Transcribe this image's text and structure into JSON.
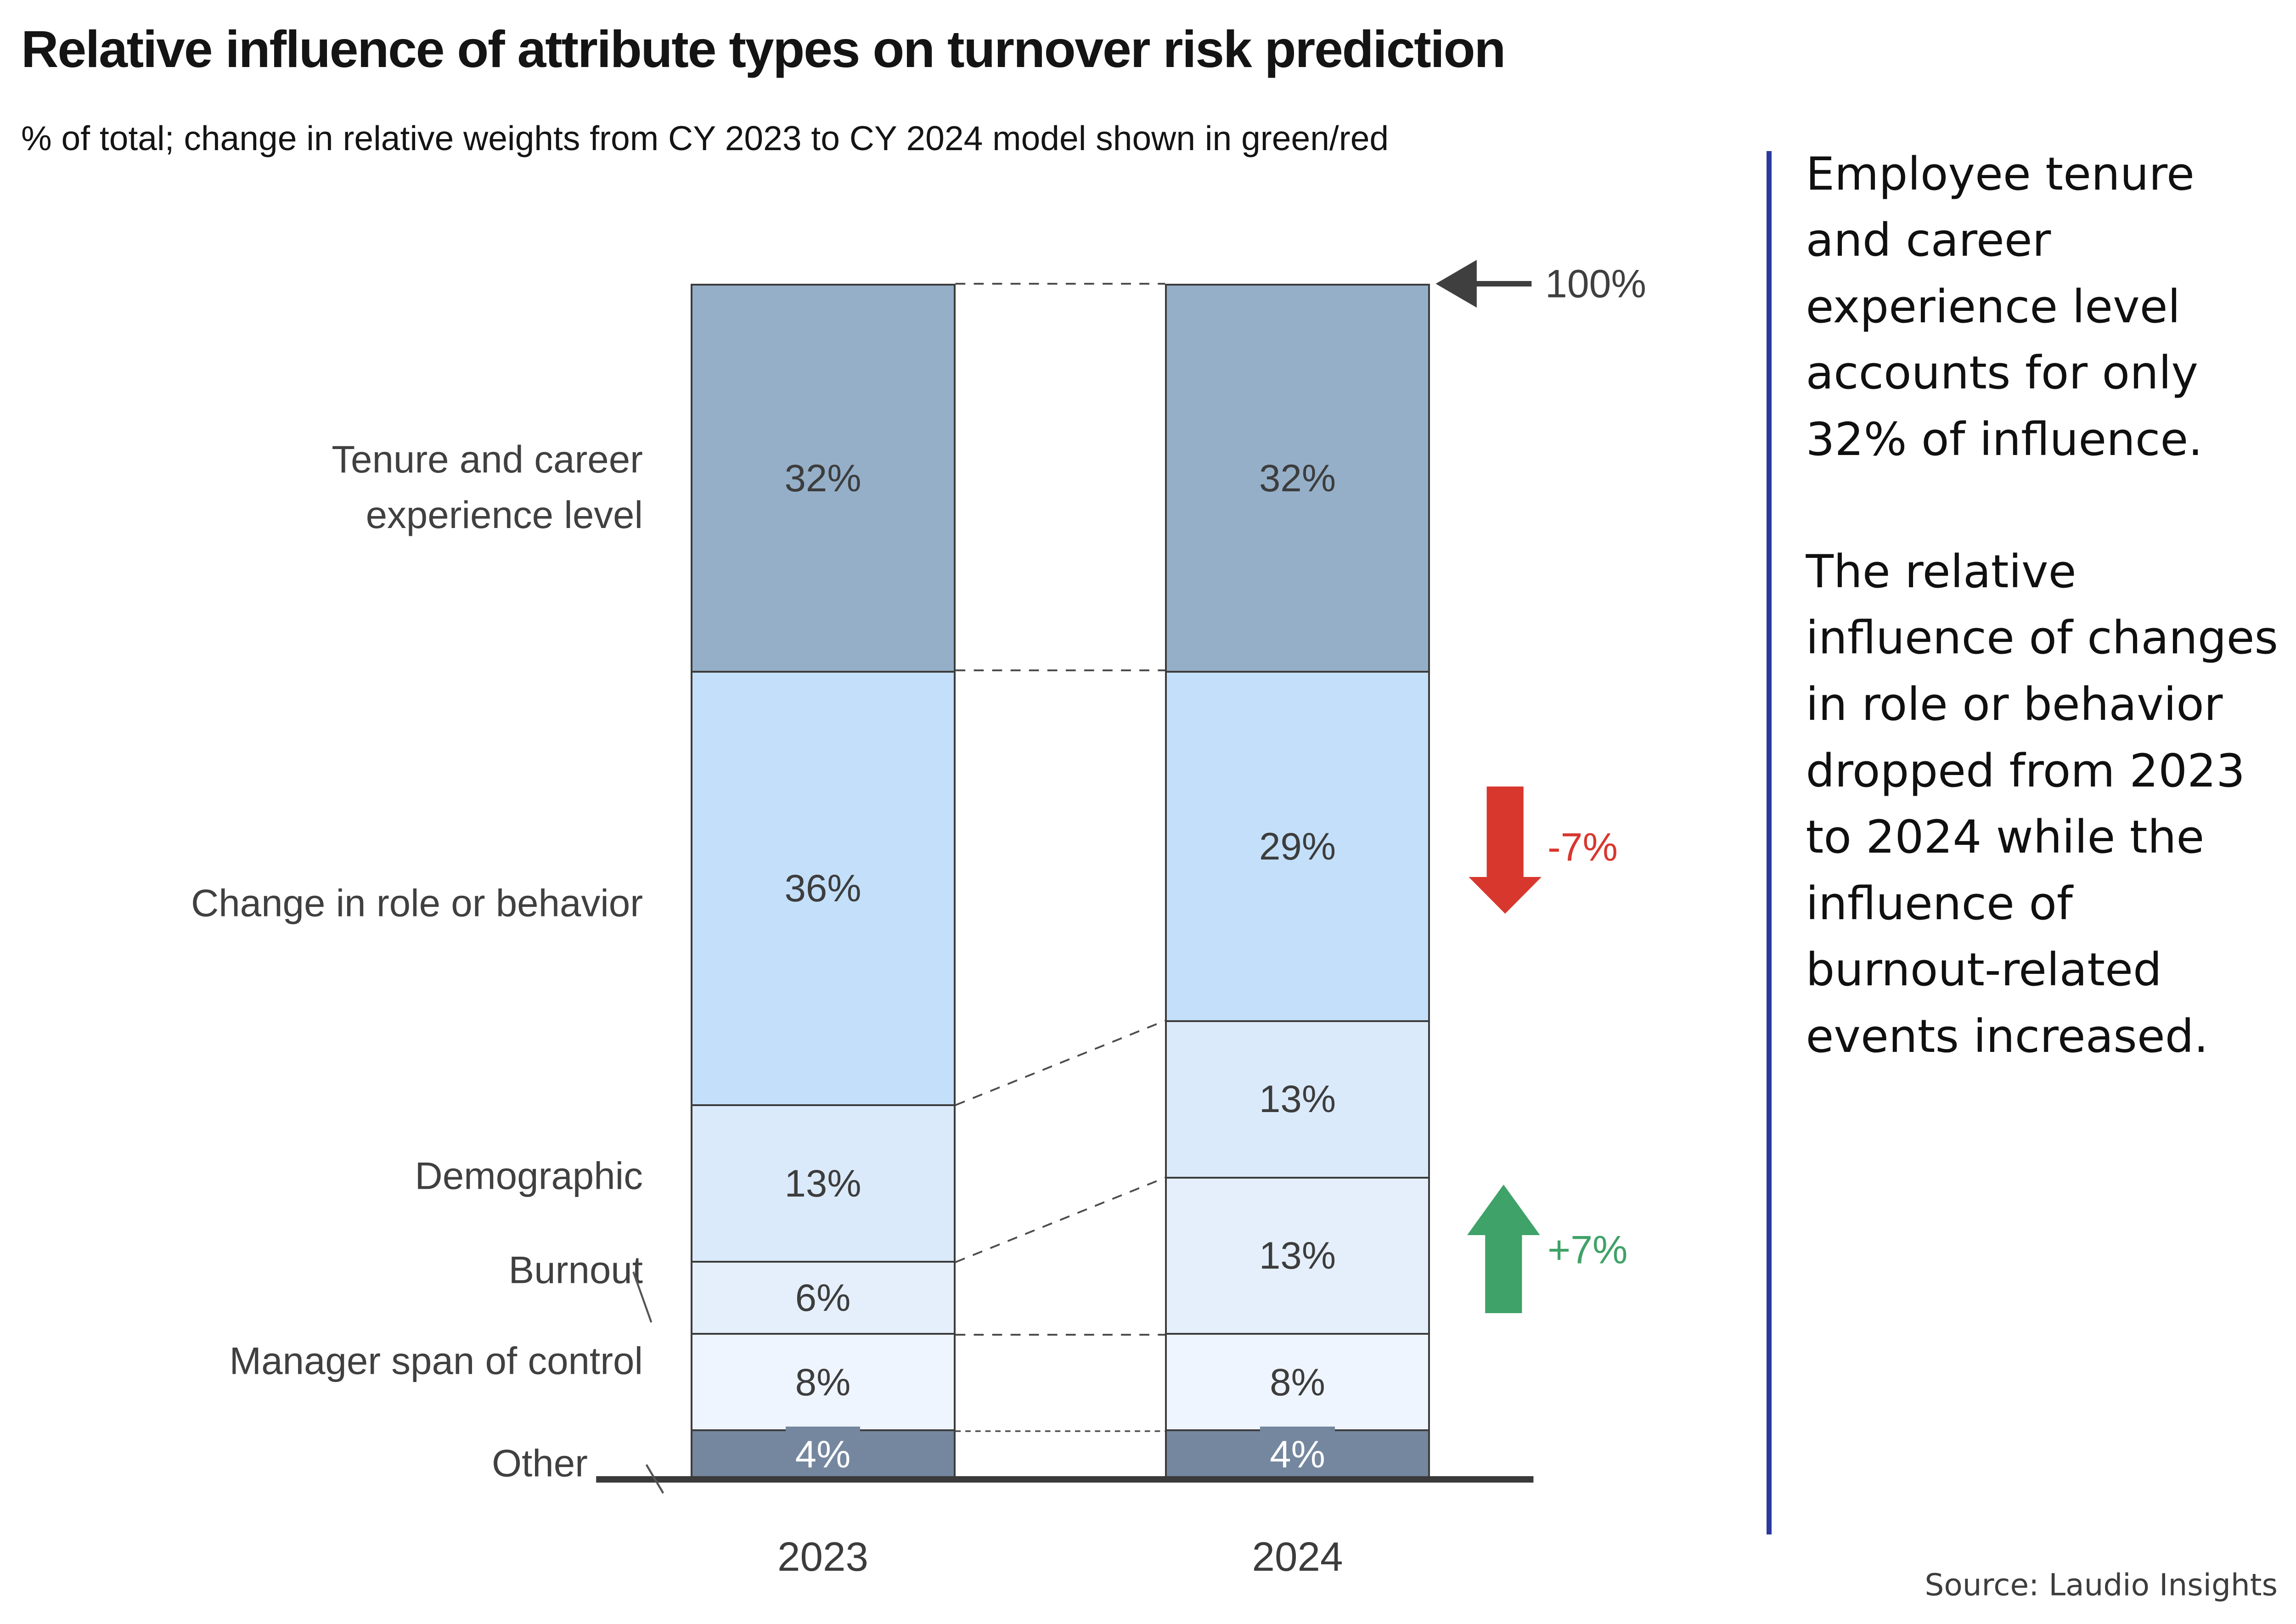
{
  "title": "Relative influence of attribute types on turnover risk prediction",
  "subtitle": "% of total; change in relative weights from CY 2023 to CY 2024 model shown in green/red",
  "chart_data": {
    "type": "bar",
    "stacked": true,
    "total": 99,
    "ylim": [
      0,
      100
    ],
    "categories": [
      "2023",
      "2024"
    ],
    "segments": [
      "Tenure and career experience level",
      "Change in role or behavior",
      "Demographic",
      "Burnout",
      "Manager span of control",
      "Other"
    ],
    "segment_keys": [
      "tenure",
      "role-change",
      "demographic",
      "burnout",
      "span-of-control",
      "other"
    ],
    "segment_colors": [
      "#95afc9",
      "#c3dff9",
      "#dbeafb",
      "#e5effc",
      "#eff5fe",
      "#75879f"
    ],
    "series": [
      {
        "name": "2023",
        "values": [
          32,
          36,
          13,
          6,
          8,
          4
        ],
        "labels": [
          "32%",
          "36%",
          "13%",
          "6%",
          "8%",
          "4%"
        ]
      },
      {
        "name": "2024",
        "values": [
          32,
          29,
          13,
          13,
          8,
          4
        ],
        "labels": [
          "32%",
          "29%",
          "13%",
          "13%",
          "8%",
          "4%"
        ]
      }
    ],
    "axis_marker": "100%",
    "changes": [
      {
        "segment": "Change in role or behavior",
        "delta": "-7%",
        "direction": "down",
        "color": "#d8372e"
      },
      {
        "segment": "Burnout",
        "delta": "+7%",
        "direction": "up",
        "color": "#3fa268"
      }
    ]
  },
  "category_labels": {
    "tenure_line1": "Tenure and career",
    "tenure_line2": "experience level",
    "role_change": "Change in role or behavior",
    "demographic": "Demographic",
    "burnout": "Burnout",
    "span_of_control": "Manager span of control",
    "other": "Other"
  },
  "axis": {
    "year_left": "2023",
    "year_right": "2024"
  },
  "annotations": {
    "hundred": "100%",
    "decrease": "-7%",
    "increase": "+7%"
  },
  "right_panel": {
    "divider_color": "#2b3a9e",
    "para1": "Employee tenure and career experience level accounts for only 32% of influence.",
    "para2": "The relative influence of changes in role or behavior dropped from 2023 to 2024 while the influence of burnout-related events increased."
  },
  "source": "Source: Laudio Insights"
}
